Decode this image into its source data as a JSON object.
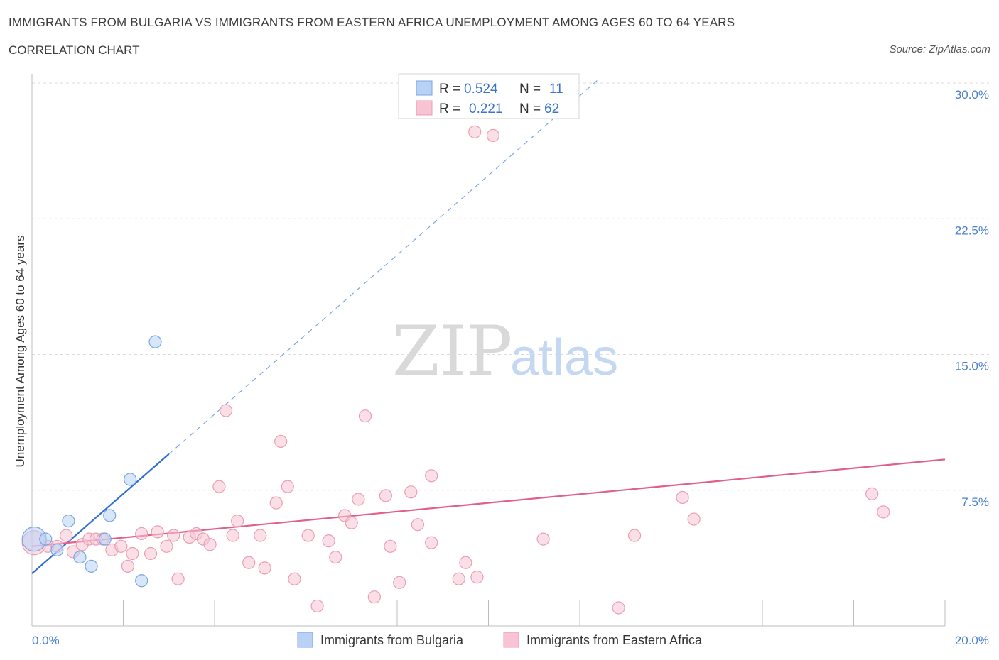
{
  "header": {
    "title": "IMMIGRANTS FROM BULGARIA VS IMMIGRANTS FROM EASTERN AFRICA UNEMPLOYMENT AMONG AGES 60 TO 64 YEARS",
    "subtitle": "CORRELATION CHART",
    "source": "Source: ZipAtlas.com"
  },
  "watermark": {
    "zip": "ZIP",
    "atlas": "atlas"
  },
  "colors": {
    "bulgaria_fill": "#b8d1f5",
    "bulgaria_stroke": "#7aa6e0",
    "bulgaria_line": "#2f6fd0",
    "eafrica_fill": "#f8c4d3",
    "eafrica_stroke": "#ec9db5",
    "eafrica_line": "#e0608a",
    "grid": "#dcdcdc",
    "tick_label": "#4a7fd0"
  },
  "legend": {
    "rows": [
      {
        "r_label": "R =",
        "r_value": "0.524",
        "n_label": "N =",
        "n_value": "11"
      },
      {
        "r_label": "R =",
        "r_value": "0.221",
        "n_label": "N =",
        "n_value": "62"
      }
    ]
  },
  "chart_data": {
    "type": "scatter",
    "title": "IMMIGRANTS FROM BULGARIA VS IMMIGRANTS FROM EASTERN AFRICA UNEMPLOYMENT AMONG AGES 60 TO 64 YEARS",
    "xlabel": "",
    "ylabel": "Unemployment Among Ages 60 to 64 years",
    "xlim": [
      0,
      20
    ],
    "ylim": [
      0,
      30
    ],
    "x_tick_labels": [
      "0.0%",
      "20.0%"
    ],
    "y_ticks": [
      7.5,
      15.0,
      22.5,
      30.0
    ],
    "y_tick_labels": [
      "7.5%",
      "15.0%",
      "22.5%",
      "30.0%"
    ],
    "legend_position": "bottom",
    "series": [
      {
        "name": "Immigrants from Bulgaria",
        "r": 0.524,
        "n": 11,
        "points": [
          {
            "x": 0.05,
            "y": 4.8,
            "big": true
          },
          {
            "x": 0.3,
            "y": 4.8
          },
          {
            "x": 0.55,
            "y": 4.2
          },
          {
            "x": 0.8,
            "y": 5.8
          },
          {
            "x": 1.05,
            "y": 3.8
          },
          {
            "x": 1.3,
            "y": 3.3
          },
          {
            "x": 1.6,
            "y": 4.8
          },
          {
            "x": 1.7,
            "y": 6.1
          },
          {
            "x": 2.15,
            "y": 8.1
          },
          {
            "x": 2.4,
            "y": 2.5
          },
          {
            "x": 2.7,
            "y": 15.7
          }
        ],
        "trend": {
          "x0": 0,
          "y0": 2.9,
          "x1": 3.0,
          "y1": 9.5,
          "dashed_to_x": 12.4
        }
      },
      {
        "name": "Immigrants from Eastern Africa",
        "r": 0.221,
        "n": 62,
        "points": [
          {
            "x": 0.05,
            "y": 4.6,
            "big": true
          },
          {
            "x": 0.35,
            "y": 4.4
          },
          {
            "x": 0.55,
            "y": 4.4
          },
          {
            "x": 0.75,
            "y": 5.0
          },
          {
            "x": 0.9,
            "y": 4.1
          },
          {
            "x": 1.1,
            "y": 4.5
          },
          {
            "x": 1.25,
            "y": 4.8
          },
          {
            "x": 1.4,
            "y": 4.8
          },
          {
            "x": 1.55,
            "y": 4.8
          },
          {
            "x": 1.75,
            "y": 4.2
          },
          {
            "x": 1.95,
            "y": 4.4
          },
          {
            "x": 2.1,
            "y": 3.3
          },
          {
            "x": 2.2,
            "y": 4.0
          },
          {
            "x": 2.4,
            "y": 5.1
          },
          {
            "x": 2.6,
            "y": 4.0
          },
          {
            "x": 2.75,
            "y": 5.2
          },
          {
            "x": 2.95,
            "y": 4.4
          },
          {
            "x": 3.1,
            "y": 5.0
          },
          {
            "x": 3.2,
            "y": 2.6
          },
          {
            "x": 3.45,
            "y": 4.9
          },
          {
            "x": 3.6,
            "y": 5.1
          },
          {
            "x": 3.75,
            "y": 4.8
          },
          {
            "x": 3.9,
            "y": 4.5
          },
          {
            "x": 4.1,
            "y": 7.7
          },
          {
            "x": 4.25,
            "y": 11.9
          },
          {
            "x": 4.4,
            "y": 5.0
          },
          {
            "x": 4.5,
            "y": 5.8
          },
          {
            "x": 4.75,
            "y": 3.5
          },
          {
            "x": 5.0,
            "y": 5.0
          },
          {
            "x": 5.1,
            "y": 3.2
          },
          {
            "x": 5.35,
            "y": 6.8
          },
          {
            "x": 5.45,
            "y": 10.2
          },
          {
            "x": 5.6,
            "y": 7.7
          },
          {
            "x": 5.75,
            "y": 2.6
          },
          {
            "x": 6.05,
            "y": 5.0
          },
          {
            "x": 6.25,
            "y": 1.1
          },
          {
            "x": 6.5,
            "y": 4.7
          },
          {
            "x": 6.65,
            "y": 3.8
          },
          {
            "x": 6.85,
            "y": 6.1
          },
          {
            "x": 7.0,
            "y": 5.7
          },
          {
            "x": 7.15,
            "y": 7.0
          },
          {
            "x": 7.3,
            "y": 11.6
          },
          {
            "x": 7.5,
            "y": 1.6
          },
          {
            "x": 7.75,
            "y": 7.2
          },
          {
            "x": 7.85,
            "y": 4.4
          },
          {
            "x": 8.05,
            "y": 2.4
          },
          {
            "x": 8.3,
            "y": 7.4
          },
          {
            "x": 8.45,
            "y": 5.6
          },
          {
            "x": 8.75,
            "y": 8.3
          },
          {
            "x": 8.75,
            "y": 4.6
          },
          {
            "x": 9.35,
            "y": 2.6
          },
          {
            "x": 9.5,
            "y": 3.5
          },
          {
            "x": 9.7,
            "y": 27.3
          },
          {
            "x": 9.75,
            "y": 2.7
          },
          {
            "x": 10.1,
            "y": 27.1
          },
          {
            "x": 11.2,
            "y": 4.8
          },
          {
            "x": 12.85,
            "y": 1.0
          },
          {
            "x": 13.2,
            "y": 5.0
          },
          {
            "x": 14.25,
            "y": 7.1
          },
          {
            "x": 14.5,
            "y": 5.9
          },
          {
            "x": 18.4,
            "y": 7.3
          },
          {
            "x": 18.65,
            "y": 6.3
          }
        ],
        "trend": {
          "x0": 0,
          "y0": 4.4,
          "x1": 20,
          "y1": 9.2
        }
      }
    ]
  }
}
